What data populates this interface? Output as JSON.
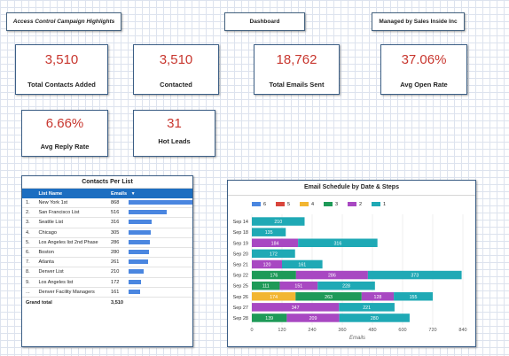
{
  "header": {
    "left": "Access Control  Campaign Highlights",
    "center": "Dashboard",
    "right": "Managed by Sales Inside Inc"
  },
  "kpis": [
    {
      "value": "3,510",
      "label": "Total Contacts Added"
    },
    {
      "value": "3,510",
      "label": "Contacted"
    },
    {
      "value": "18,762",
      "label": "Total Emails Sent"
    },
    {
      "value": "37.06%",
      "label": "Avg Open Rate"
    },
    {
      "value": "6.66%",
      "label": "Avg Reply Rate"
    },
    {
      "value": "31",
      "label": "Hot Leads"
    }
  ],
  "contacts": {
    "title": "Contacts Per List",
    "col_name": "List Name",
    "col_emails": "Emails",
    "sort_icon": "sort-desc-icon",
    "rows": [
      {
        "num": "1.",
        "name": "New York 1st",
        "emails": "868",
        "value": 868
      },
      {
        "num": "2.",
        "name": "San Francisco List",
        "emails": "516",
        "value": 516
      },
      {
        "num": "3.",
        "name": "Seattle List",
        "emails": "316",
        "value": 316
      },
      {
        "num": "4.",
        "name": "Chicago",
        "emails": "305",
        "value": 305
      },
      {
        "num": "5.",
        "name": "Los Angeles list 2nd Phase",
        "emails": "286",
        "value": 286
      },
      {
        "num": "6.",
        "name": "Boston",
        "emails": "280",
        "value": 280
      },
      {
        "num": "7.",
        "name": "Atlanta",
        "emails": "261",
        "value": 261
      },
      {
        "num": "8.",
        "name": "Denver List",
        "emails": "210",
        "value": 210
      },
      {
        "num": "9.",
        "name": "Los Angeles list",
        "emails": "172",
        "value": 172
      },
      {
        "num": "...",
        "name": "Denver Facility Managers",
        "emails": "161",
        "value": 161
      }
    ],
    "total_label": "Grand total",
    "total_value": "3,510",
    "bar_color": "#4a86e0"
  },
  "schedule": {
    "title": "Email Schedule by Date & Steps",
    "colors": {
      "6": "#4a86e0",
      "5": "#d9453c",
      "4": "#f2b632",
      "3": "#1e9a58",
      "2": "#a848c2",
      "1": "#1fa9b5"
    }
  },
  "chart_data": {
    "type": "bar",
    "orientation": "horizontal",
    "stacked": true,
    "title": "Email Schedule by Date & Steps",
    "xlabel": "Emails",
    "ylabel": "",
    "xlim": [
      0,
      840
    ],
    "xticks": [
      0,
      120,
      240,
      360,
      480,
      600,
      720,
      840
    ],
    "categories": [
      "Sep 14",
      "Sep 18",
      "Sep 19",
      "Sep 20",
      "Sep 21",
      "Sep 22",
      "Sep 25",
      "Sep 26",
      "Sep 27",
      "Sep 28"
    ],
    "series": [
      {
        "name": "6",
        "values": [
          0,
          0,
          0,
          0,
          0,
          0,
          0,
          0,
          0,
          0
        ]
      },
      {
        "name": "5",
        "values": [
          0,
          0,
          0,
          0,
          0,
          0,
          0,
          0,
          0,
          0
        ]
      },
      {
        "name": "4",
        "values": [
          0,
          0,
          0,
          0,
          0,
          0,
          0,
          174,
          0,
          0
        ]
      },
      {
        "name": "3",
        "values": [
          0,
          0,
          0,
          0,
          0,
          176,
          111,
          263,
          0,
          139
        ]
      },
      {
        "name": "2",
        "values": [
          0,
          0,
          184,
          0,
          120,
          286,
          151,
          128,
          347,
          209
        ]
      },
      {
        "name": "1",
        "values": [
          210,
          135,
          316,
          172,
          161,
          373,
          228,
          155,
          221,
          280
        ]
      }
    ],
    "legend_position": "top",
    "grid": true
  }
}
